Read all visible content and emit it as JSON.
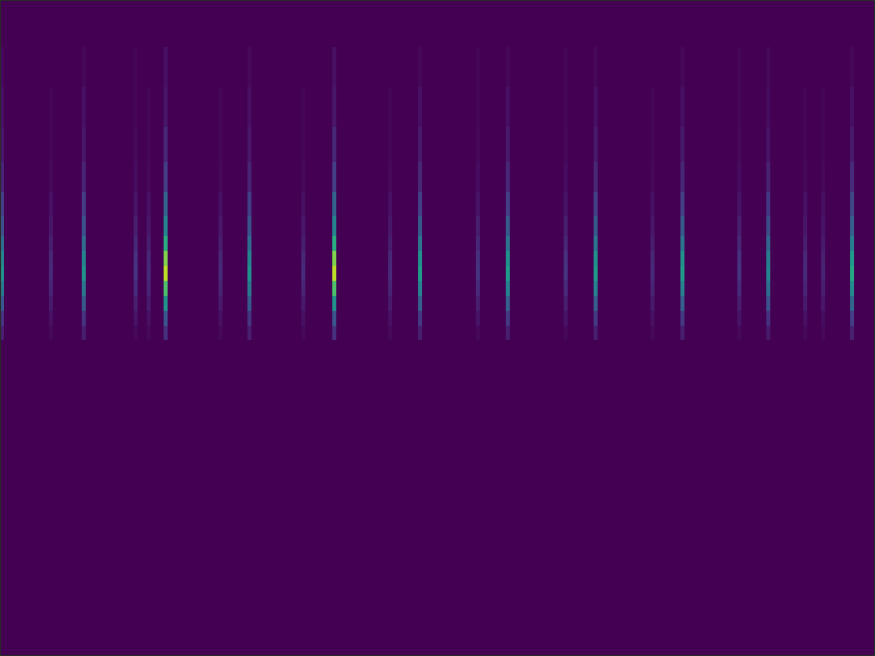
{
  "chart_data": {
    "type": "heatmap",
    "tick_labels": false,
    "grid": false,
    "xlim": [
      0,
      875
    ],
    "ylim": [
      0,
      656
    ],
    "xticks": [],
    "yticks": [],
    "zlim": [
      0,
      1
    ],
    "y_edges": [
      316,
      330,
      345,
      360,
      375,
      390,
      405,
      420,
      440,
      465,
      495,
      530,
      570,
      610
    ],
    "streaks": [
      {
        "x": 1,
        "cells": [
          0.08,
          0.15,
          0.28,
          0.4,
          0.5,
          0.45,
          0.35,
          0.25,
          0.18,
          0.1,
          0.06,
          0.04,
          0.02
        ]
      },
      {
        "x": 50,
        "cells": [
          0.02,
          0.04,
          0.07,
          0.1,
          0.12,
          0.11,
          0.08,
          0.06,
          0.04,
          0.02,
          0.01,
          0.01,
          0
        ]
      },
      {
        "x": 83,
        "cells": [
          0.08,
          0.15,
          0.28,
          0.4,
          0.5,
          0.45,
          0.35,
          0.25,
          0.18,
          0.1,
          0.06,
          0.04,
          0.02
        ]
      },
      {
        "x": 135,
        "cells": [
          0.02,
          0.05,
          0.08,
          0.12,
          0.15,
          0.14,
          0.11,
          0.08,
          0.05,
          0.03,
          0.02,
          0.01,
          0.01
        ]
      },
      {
        "x": 148,
        "cells": [
          0.02,
          0.04,
          0.07,
          0.1,
          0.12,
          0.11,
          0.08,
          0.06,
          0.04,
          0.02,
          0.01,
          0.01,
          0
        ]
      },
      {
        "x": 165,
        "cells": [
          0.14,
          0.27,
          0.5,
          0.72,
          0.9,
          0.81,
          0.63,
          0.45,
          0.32,
          0.18,
          0.11,
          0.06,
          0.04
        ]
      },
      {
        "x": 220,
        "cells": [
          0.02,
          0.04,
          0.07,
          0.1,
          0.12,
          0.11,
          0.08,
          0.06,
          0.04,
          0.02,
          0.01,
          0.01,
          0
        ]
      },
      {
        "x": 249,
        "cells": [
          0.08,
          0.15,
          0.28,
          0.4,
          0.5,
          0.45,
          0.35,
          0.25,
          0.18,
          0.1,
          0.06,
          0.04,
          0.02
        ]
      },
      {
        "x": 303,
        "cells": [
          0.02,
          0.04,
          0.07,
          0.1,
          0.12,
          0.11,
          0.08,
          0.06,
          0.04,
          0.02,
          0.01,
          0.01,
          0
        ]
      },
      {
        "x": 334,
        "cells": [
          0.14,
          0.27,
          0.5,
          0.72,
          0.9,
          0.81,
          0.63,
          0.45,
          0.32,
          0.18,
          0.11,
          0.06,
          0.04
        ]
      },
      {
        "x": 390,
        "cells": [
          0.02,
          0.04,
          0.07,
          0.1,
          0.12,
          0.11,
          0.08,
          0.06,
          0.04,
          0.02,
          0.01,
          0.01,
          0
        ]
      },
      {
        "x": 420,
        "cells": [
          0.08,
          0.17,
          0.3,
          0.44,
          0.55,
          0.5,
          0.39,
          0.28,
          0.19,
          0.11,
          0.07,
          0.04,
          0.02
        ]
      },
      {
        "x": 478,
        "cells": [
          0.02,
          0.05,
          0.08,
          0.12,
          0.15,
          0.14,
          0.11,
          0.08,
          0.05,
          0.03,
          0.02,
          0.01,
          0.01
        ]
      },
      {
        "x": 508,
        "cells": [
          0.08,
          0.17,
          0.3,
          0.44,
          0.55,
          0.5,
          0.39,
          0.28,
          0.19,
          0.11,
          0.07,
          0.04,
          0.02
        ]
      },
      {
        "x": 566,
        "cells": [
          0.02,
          0.05,
          0.08,
          0.12,
          0.15,
          0.14,
          0.11,
          0.08,
          0.05,
          0.03,
          0.02,
          0.01,
          0.01
        ]
      },
      {
        "x": 596,
        "cells": [
          0.08,
          0.17,
          0.3,
          0.44,
          0.55,
          0.5,
          0.39,
          0.28,
          0.19,
          0.11,
          0.07,
          0.04,
          0.02
        ]
      },
      {
        "x": 653,
        "cells": [
          0.02,
          0.04,
          0.07,
          0.1,
          0.12,
          0.11,
          0.08,
          0.06,
          0.04,
          0.02,
          0.01,
          0.01,
          0
        ]
      },
      {
        "x": 683,
        "cells": [
          0.08,
          0.17,
          0.3,
          0.44,
          0.55,
          0.5,
          0.39,
          0.28,
          0.19,
          0.11,
          0.07,
          0.04,
          0.02
        ]
      },
      {
        "x": 740,
        "cells": [
          0.02,
          0.05,
          0.08,
          0.12,
          0.15,
          0.14,
          0.11,
          0.08,
          0.05,
          0.03,
          0.02,
          0.01,
          0.01
        ]
      },
      {
        "x": 769,
        "cells": [
          0.07,
          0.14,
          0.25,
          0.36,
          0.45,
          0.41,
          0.32,
          0.23,
          0.16,
          0.09,
          0.05,
          0.03,
          0.02
        ]
      },
      {
        "x": 806,
        "cells": [
          0.02,
          0.04,
          0.07,
          0.1,
          0.12,
          0.11,
          0.08,
          0.06,
          0.04,
          0.02,
          0.01,
          0.01,
          0
        ]
      },
      {
        "x": 824,
        "cells": [
          0.02,
          0.03,
          0.06,
          0.08,
          0.1,
          0.09,
          0.07,
          0.05,
          0.04,
          0.02,
          0.01,
          0.01,
          0
        ]
      },
      {
        "x": 853,
        "cells": [
          0.09,
          0.18,
          0.33,
          0.48,
          0.6,
          0.54,
          0.42,
          0.3,
          0.21,
          0.12,
          0.07,
          0.04,
          0.02
        ]
      }
    ]
  }
}
